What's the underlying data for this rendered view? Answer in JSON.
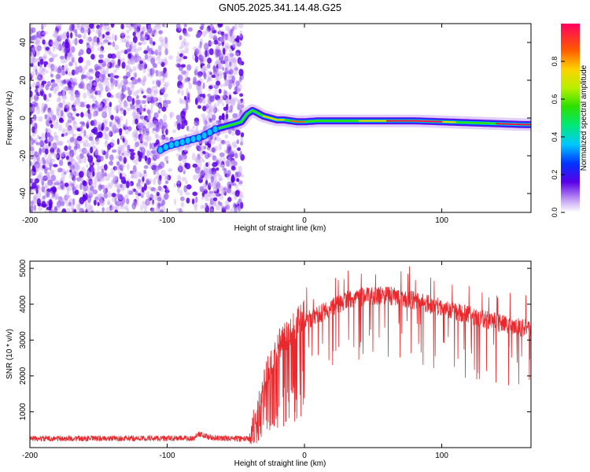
{
  "title": "GN05.2025.341.14.48.G25",
  "chart_data": [
    {
      "type": "heatmap",
      "xlabel": "Height of straight line (km)",
      "ylabel": "Frequency (Hz)",
      "xlim": [
        -200,
        165
      ],
      "ylim": [
        -50,
        50
      ],
      "xticks": [
        -200,
        -100,
        0,
        100
      ],
      "yticks": [
        -40,
        -20,
        0,
        20,
        40
      ],
      "ridge": {
        "x": [
          -105,
          -100,
          -95,
          -90,
          -85,
          -80,
          -75,
          -70,
          -65,
          -60,
          -55,
          -50,
          -46,
          -42,
          -38,
          -35,
          -30,
          -25,
          -20,
          -15,
          -10,
          -5,
          0,
          10,
          20,
          40,
          60,
          80,
          100,
          120,
          140,
          160,
          165
        ],
        "y": [
          -17,
          -15,
          -14,
          -13,
          -12,
          -11,
          -10,
          -8,
          -6,
          -5,
          -4,
          -3,
          -2,
          2,
          4,
          3,
          1,
          0,
          -1,
          -1,
          -1.5,
          -2,
          -2,
          -1.5,
          -1.5,
          -1.5,
          -1.5,
          -1.5,
          -2,
          -2.5,
          -3,
          -3.5,
          -3.5
        ]
      },
      "noise_region": [
        -200,
        -45
      ],
      "colorbar": {
        "label": "Normalized spectral amplitude",
        "ticks": [
          0.0,
          0.2,
          0.4,
          0.6,
          0.8
        ],
        "tick_labels": [
          "0.0",
          "0.2",
          "0.4",
          "0.6",
          "0.8"
        ],
        "range": [
          0,
          1
        ]
      }
    },
    {
      "type": "line",
      "xlabel": "Height of straight line (km)",
      "ylabel": "SNR (10 * v/v)",
      "xlim": [
        -200,
        165
      ],
      "ylim": [
        0,
        5200
      ],
      "xticks": [
        -200,
        -100,
        0,
        100
      ],
      "yticks": [
        1000,
        2000,
        3000,
        4000,
        5000
      ],
      "color": "#e8292e",
      "envelope": {
        "x": [
          -200,
          -80,
          -78,
          -70,
          -65,
          -40,
          -35,
          -30,
          -25,
          -20,
          -15,
          -10,
          0,
          10,
          20,
          30,
          40,
          60,
          80,
          100,
          120,
          140,
          165
        ],
        "y": [
          250,
          260,
          400,
          300,
          260,
          250,
          600,
          1500,
          2200,
          2600,
          2900,
          3100,
          3500,
          3700,
          3900,
          4100,
          4200,
          4250,
          4100,
          3900,
          3700,
          3500,
          3300
        ]
      }
    }
  ]
}
